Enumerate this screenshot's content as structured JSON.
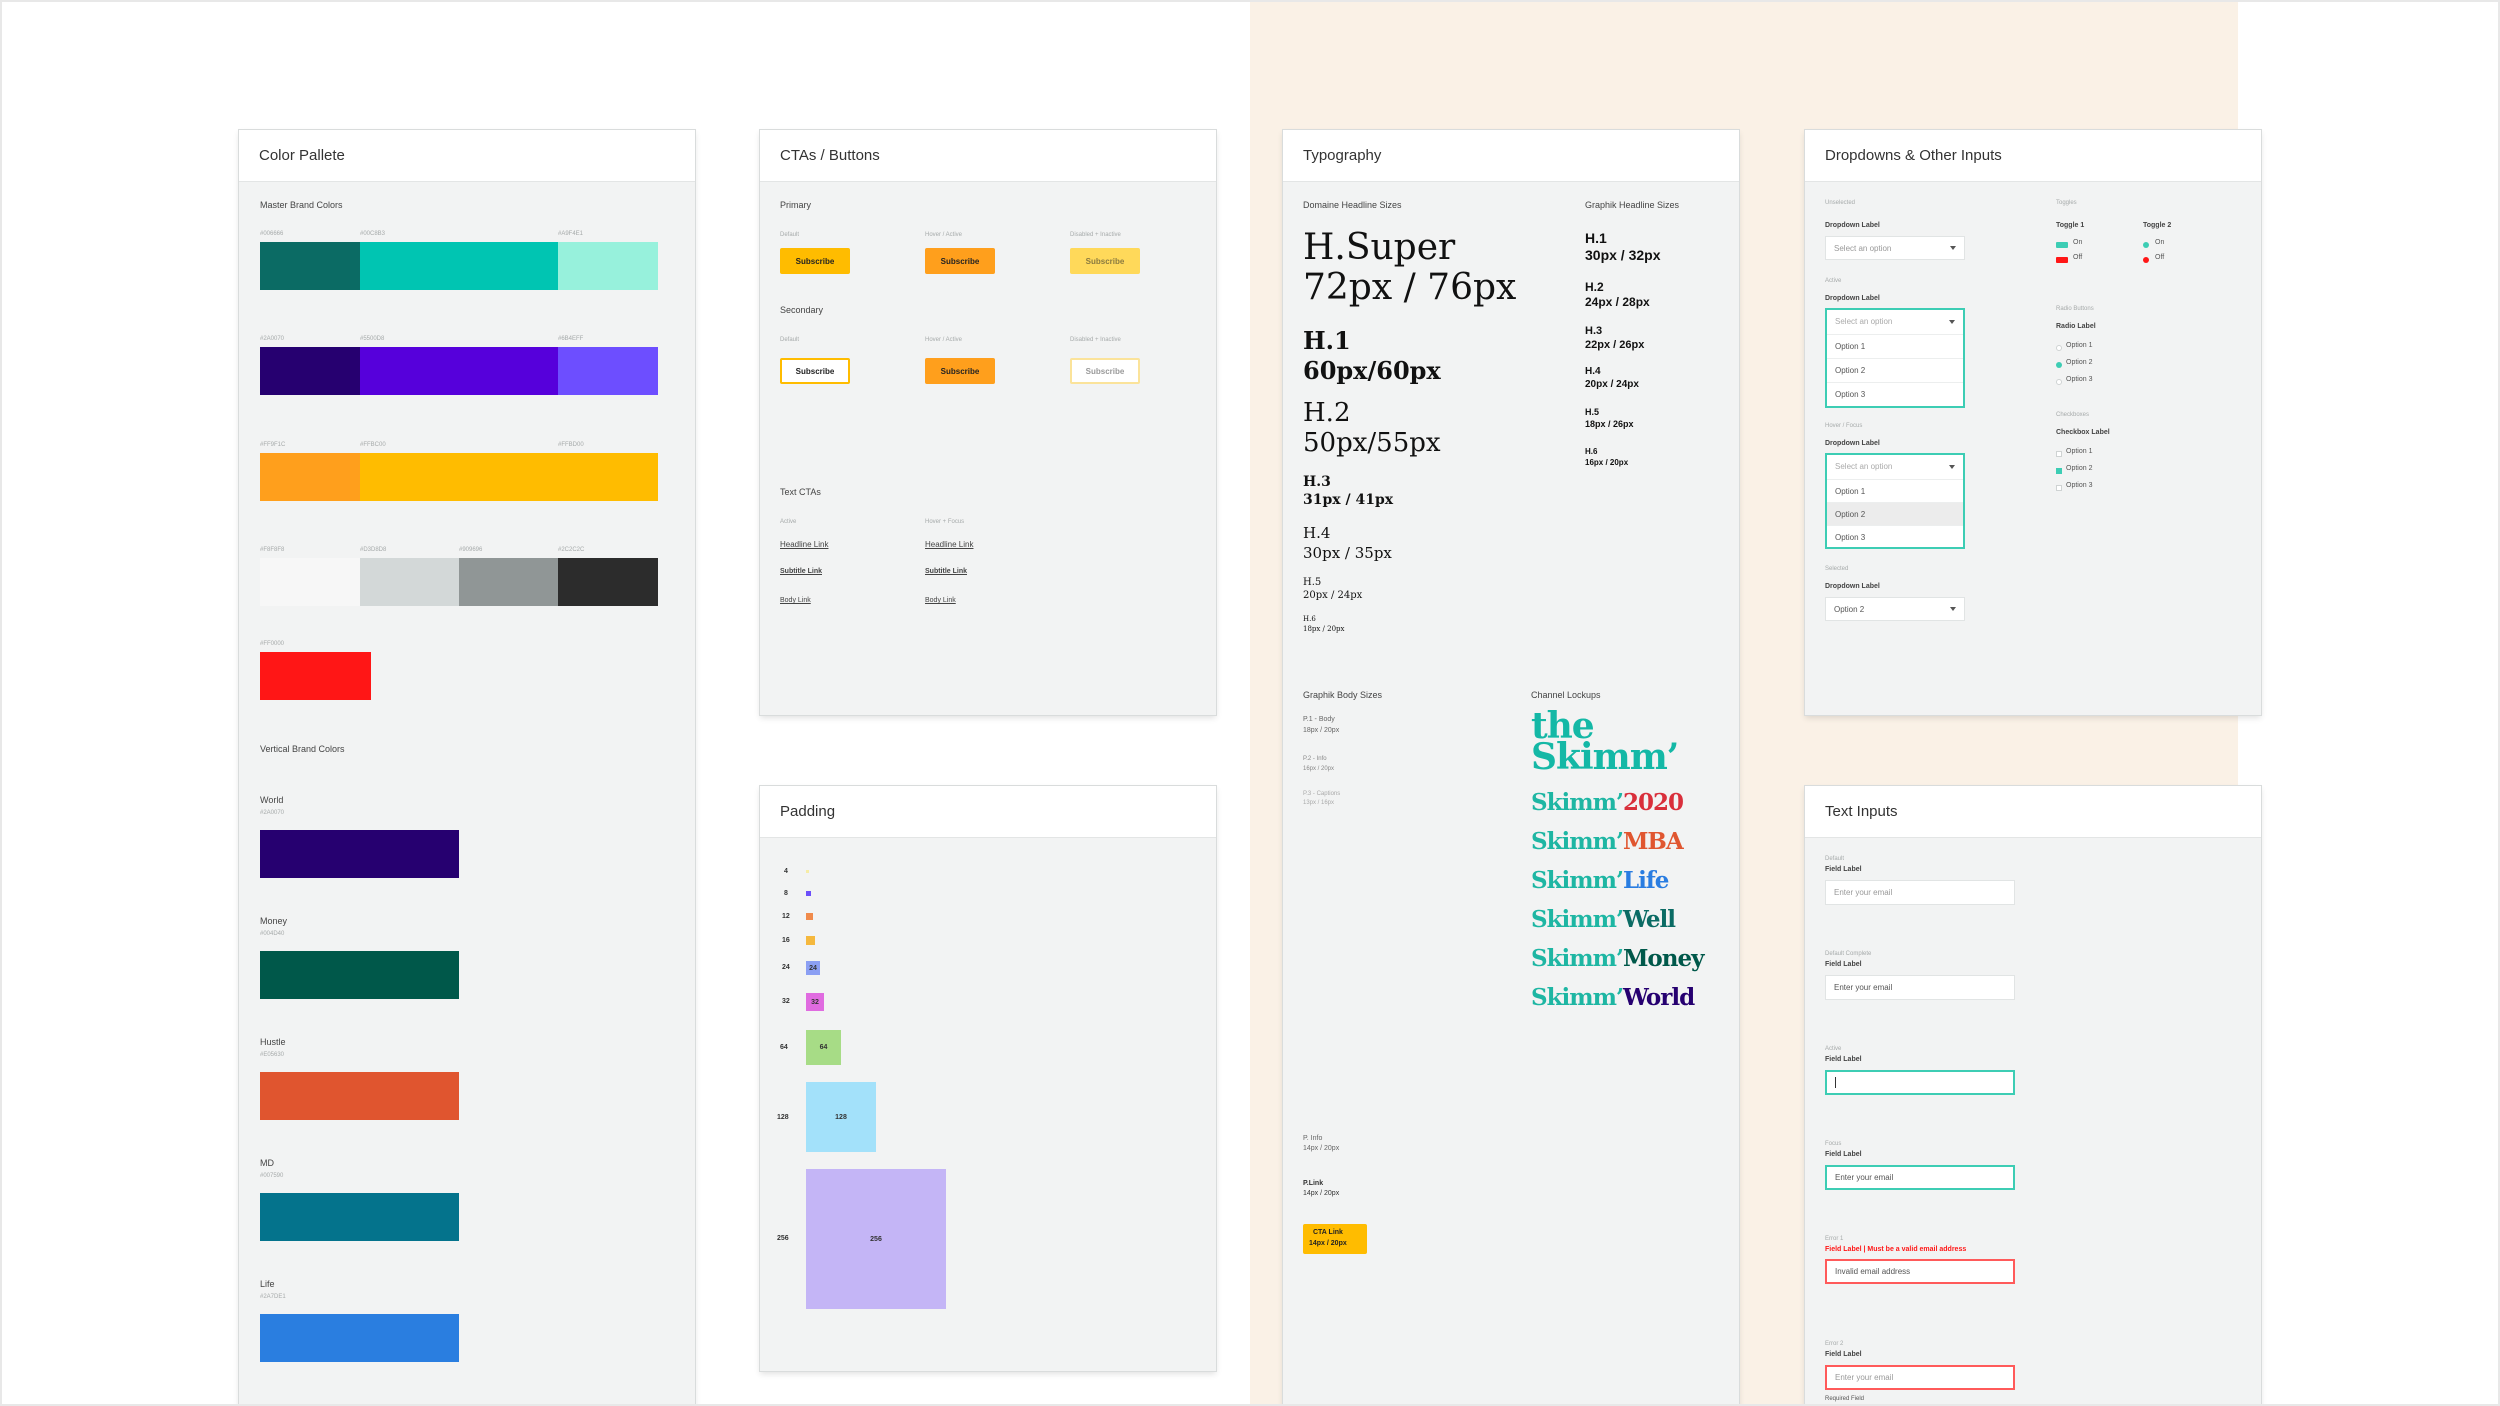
{
  "colors": {
    "teal": "#3dcdb4",
    "bg": "#f2f3f3",
    "beige": "#faf1e6"
  },
  "palette": {
    "title": "Color Pallete",
    "master_label": "Master Brand Colors",
    "rows": [
      {
        "swatches": [
          {
            "hex_label": "#006666",
            "color": "#0b6b64"
          },
          {
            "hex_label": "#00C8B3",
            "color": "#00c5b2"
          },
          {
            "hex_label": "#A9F4E1",
            "color": "#97f1dc"
          }
        ]
      },
      {
        "swatches": [
          {
            "hex_label": "#2A0070",
            "color": "#260070"
          },
          {
            "hex_label": "#5500D8",
            "color": "#5600db"
          },
          {
            "hex_label": "#6B4EFF",
            "color": "#6d4eff"
          }
        ]
      },
      {
        "swatches": [
          {
            "hex_label": "#FF9F1C",
            "color": "#ff9f1c"
          },
          {
            "hex_label": "#FFBC00",
            "color": "#ffbc00"
          },
          {
            "hex_label": "#FFBD00",
            "color": "#ffbd00"
          }
        ]
      },
      {
        "swatches": [
          {
            "hex_label": "#F8F8F8",
            "color": "#f7f7f7"
          },
          {
            "hex_label": "#D3D8D8",
            "color": "#d3d8d8"
          },
          {
            "hex_label": "#909696",
            "color": "#909696"
          },
          {
            "hex_label": "#2C2C2C",
            "color": "#2c2c2c"
          }
        ]
      },
      {
        "swatches": [
          {
            "hex_label": "#FF0000",
            "color": "#ff1616"
          }
        ]
      }
    ],
    "vertical_label": "Vertical Brand Colors",
    "verticals": [
      {
        "name": "World",
        "hex_label": "#2A0070",
        "color": "#260070"
      },
      {
        "name": "Money",
        "hex_label": "#004D40",
        "color": "#00584a"
      },
      {
        "name": "Hustle",
        "hex_label": "#E05630",
        "color": "#e0552f"
      },
      {
        "name": "MD",
        "hex_label": "#007590",
        "color": "#04738c"
      },
      {
        "name": "Life",
        "hex_label": "#2A7DE1",
        "color": "#2a7ee0"
      }
    ]
  },
  "ctas": {
    "title": "CTAs / Buttons",
    "primary": "Primary",
    "secondary": "Secondary",
    "text_ctas": "Text CTAs",
    "states": [
      "Default",
      "Hover / Active",
      "Disabled + Inactive"
    ],
    "button_label": "Subscribe",
    "text_states": [
      "Active",
      "Hover + Focus"
    ],
    "links": [
      "Headline Link",
      "Subtitle Link",
      "Body Link"
    ]
  },
  "padding": {
    "title": "Padding",
    "sizes": [
      {
        "value": "4",
        "color": "#f6eca6"
      },
      {
        "value": "8",
        "color": "#6c4ffa"
      },
      {
        "value": "12",
        "color": "#f08a4b"
      },
      {
        "value": "16",
        "color": "#f5b83d"
      },
      {
        "value": "24",
        "color": "#8b9ff3"
      },
      {
        "value": "32",
        "color": "#e06be0"
      },
      {
        "value": "64",
        "color": "#a7dc86"
      },
      {
        "value": "128",
        "color": "#a3e1fa"
      },
      {
        "value": "256",
        "color": "#c4b5f6"
      }
    ]
  },
  "typography": {
    "title": "Typography",
    "domaine_label": "Domaine Headline Sizes",
    "graphik_label": "Graphik Headline Sizes",
    "domaine": [
      {
        "name": "H.Super",
        "size": "72px / 76px"
      },
      {
        "name": "H.1",
        "size": "60px/60px"
      },
      {
        "name": "H.2",
        "size": "50px/55px"
      },
      {
        "name": "H.3",
        "size": "31px / 41px"
      },
      {
        "name": "H.4",
        "size": "30px / 35px"
      },
      {
        "name": "H.5",
        "size": "20px / 24px"
      },
      {
        "name": "H.6",
        "size": "18px / 20px"
      }
    ],
    "graphik": [
      {
        "name": "H.1",
        "size": "30px / 32px"
      },
      {
        "name": "H.2",
        "size": "24px / 28px"
      },
      {
        "name": "H.3",
        "size": "22px / 26px"
      },
      {
        "name": "H.4",
        "size": "20px / 24px"
      },
      {
        "name": "H.5",
        "size": "18px / 26px"
      },
      {
        "name": "H.6",
        "size": "16px / 20px"
      }
    ],
    "body_label": "Graphik Body Sizes",
    "body": [
      {
        "name": "P.1 - Body",
        "size": "18px / 20px"
      },
      {
        "name": "P.2 - Info",
        "size": "16px / 20px"
      },
      {
        "name": "P.3 - Captions",
        "size": "13px / 16px"
      }
    ],
    "lockups_label": "Channel Lockups",
    "lockup_main": {
      "line1": "the",
      "line2": "Skimm’",
      "color": "#14b8a6"
    },
    "lockups": [
      {
        "base": "Skimm’",
        "suffix": "2020",
        "color": "#d92f3b",
        "base_color": "#1eb6a3"
      },
      {
        "base": "Skimm’",
        "suffix": "MBA",
        "color": "#e05630",
        "base_color": "#1eb6a3"
      },
      {
        "base": "Skimm’",
        "suffix": "Life",
        "color": "#2a7de1",
        "base_color": "#1eb6a3"
      },
      {
        "base": "Skimm’",
        "suffix": "Well",
        "color": "#0b6b64",
        "base_color": "#1eb6a3"
      },
      {
        "base": "Skimm’",
        "suffix": "Money",
        "color": "#00584a",
        "base_color": "#1eb6a3"
      },
      {
        "base": "Skimm’",
        "suffix": "World",
        "color": "#260070",
        "base_color": "#1eb6a3"
      }
    ],
    "p_info": {
      "name": "P. Info",
      "size": "14px / 20px"
    },
    "p_link": {
      "name": "P.Link",
      "size": "14px / 20px"
    },
    "cta_link": {
      "name": "CTA Link",
      "size": "14px / 20px"
    }
  },
  "dropdowns": {
    "title": "Dropdowns & Other Inputs",
    "unselected": "Unselected",
    "active": "Active",
    "hover_focus": "Hover / Focus",
    "selected": "Selected",
    "label": "Dropdown Label",
    "placeholder": "Select an option",
    "options": [
      "Option 1",
      "Option 2",
      "Option 3"
    ],
    "selected_value": "Option 2",
    "toggles": "Toggles",
    "toggle1": "Toggle 1",
    "toggle2": "Toggle 2",
    "on": "On",
    "off": "Off",
    "radio_buttons": "Radio Buttons",
    "radio_label": "Radio Label",
    "checkboxes": "Checkboxes",
    "checkbox_label": "Checkbox Label"
  },
  "text_inputs": {
    "title": "Text Inputs",
    "states": [
      "Default",
      "Default Complete",
      "Active",
      "Focus",
      "Error 1",
      "Error 2"
    ],
    "field_label": "Field Label",
    "placeholder": "Enter your email",
    "error_label": "Field Label | Must be a valid email address",
    "error_value": "Invalid email address",
    "required": "Required Field"
  }
}
